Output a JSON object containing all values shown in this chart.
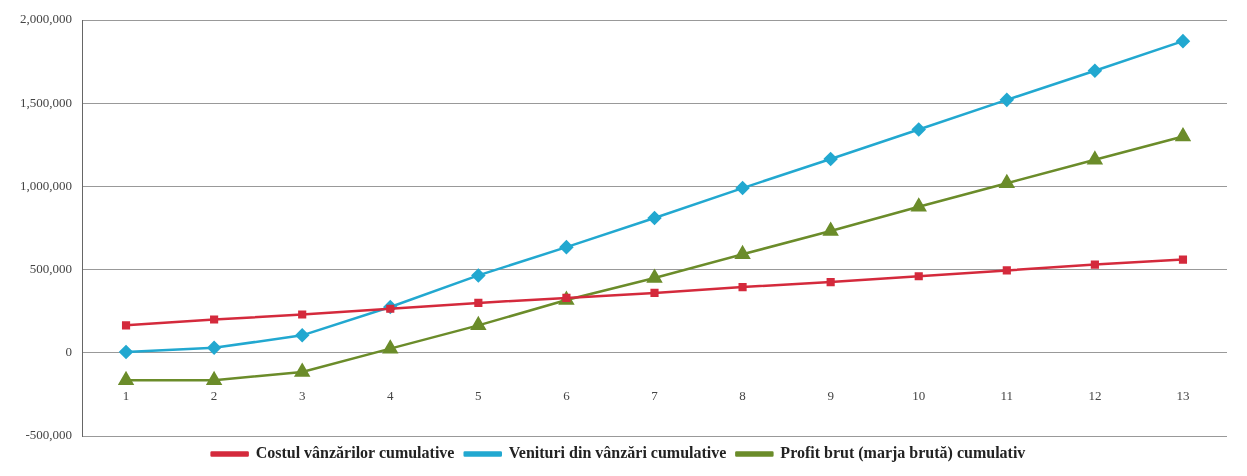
{
  "chart_data": {
    "type": "line",
    "categories": [
      "1",
      "2",
      "3",
      "4",
      "5",
      "6",
      "7",
      "8",
      "9",
      "10",
      "11",
      "12",
      "13"
    ],
    "series": [
      {
        "name": "Costul vânzărilor cumulative",
        "color": "#d42a3c",
        "marker": "square",
        "values": [
          165000,
          200000,
          230000,
          265000,
          300000,
          330000,
          360000,
          395000,
          425000,
          460000,
          495000,
          530000,
          560000
        ]
      },
      {
        "name": "Venituri din vânzări cumulative",
        "color": "#22a8d0",
        "marker": "diamond",
        "values": [
          5000,
          30000,
          105000,
          275000,
          465000,
          635000,
          810000,
          990000,
          1165000,
          1342000,
          1520000,
          1695000,
          1873000
        ]
      },
      {
        "name": "Profit brut (marja brută) cumulativ",
        "color": "#6b8c2a",
        "marker": "triangle",
        "values": [
          -165000,
          -165000,
          -115000,
          25000,
          165000,
          317000,
          450000,
          592000,
          732000,
          878000,
          1019000,
          1160000,
          1300000
        ]
      }
    ],
    "ylim": [
      -500000,
      2000000
    ],
    "yticks": [
      {
        "value": -500000,
        "label": "-500,000"
      },
      0,
      {
        "value": 500000,
        "label": "500,000"
      },
      {
        "value": 1000000,
        "label": "1,000,000"
      },
      {
        "value": 1500000,
        "label": "1,500,000"
      },
      {
        "value": 2000000,
        "label": "2,000,000"
      }
    ],
    "grid": "y",
    "legend": "bottom",
    "line_style": "solid"
  }
}
